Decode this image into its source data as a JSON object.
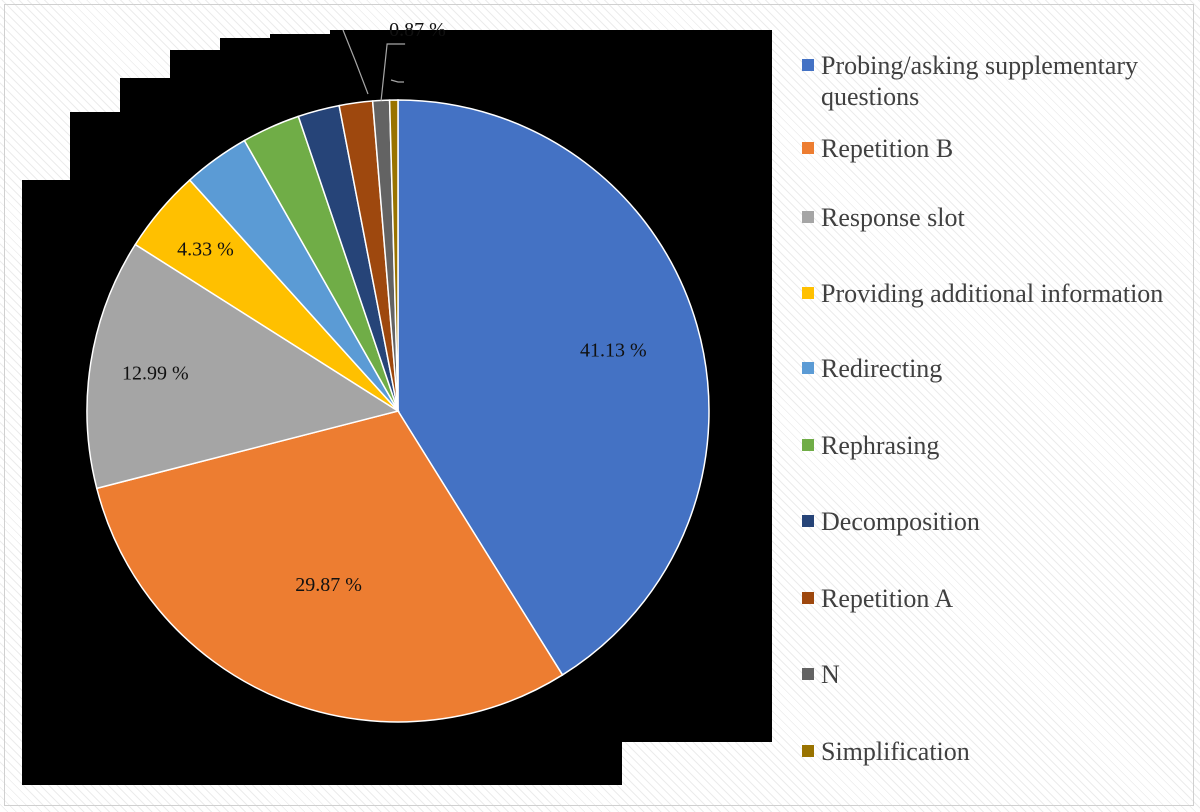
{
  "chart_data": {
    "type": "pie",
    "title": "",
    "start_angle_deg": 0,
    "direction": "clockwise",
    "legend_position": "right",
    "categories": [
      "Probing/asking supplementary questions",
      "Repetition B",
      "Response slot",
      "Providing additional information",
      "Redirecting",
      "Rephrasing",
      "Decomposition",
      "Repetition A",
      "N",
      "Simplification"
    ],
    "values": [
      41.13,
      29.87,
      12.99,
      4.33,
      3.46,
      3.03,
      2.16,
      1.73,
      0.87,
      0.43
    ],
    "colors": [
      "#4472C4",
      "#ED7D31",
      "#A5A5A5",
      "#FFC000",
      "#5B9BD5",
      "#70AD47",
      "#264478",
      "#9E480E",
      "#636363",
      "#997300"
    ],
    "data_labels": [
      {
        "index": 0,
        "text": "41.13 %"
      },
      {
        "index": 1,
        "text": "29.87 %"
      },
      {
        "index": 2,
        "text": "12.99 %"
      },
      {
        "index": 3,
        "text": "4.33 %"
      },
      {
        "index": 8,
        "text": "0.87 %"
      }
    ]
  }
}
